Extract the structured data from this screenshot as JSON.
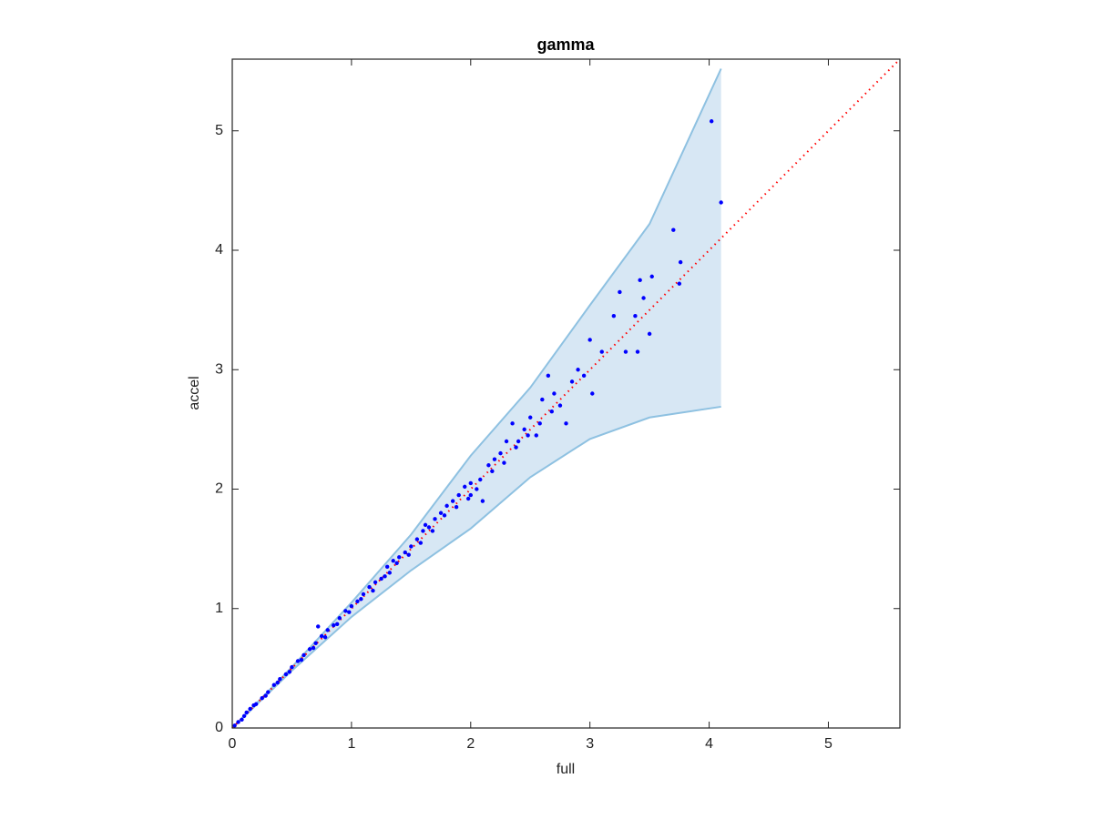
{
  "chart_data": {
    "type": "scatter",
    "title": "gamma",
    "x_label": "full",
    "y_label": "accel",
    "xlim": [
      0,
      5.6
    ],
    "ylim": [
      0,
      5.6
    ],
    "xticks": [
      0,
      1,
      2,
      3,
      4,
      5
    ],
    "yticks": [
      0,
      1,
      2,
      3,
      4,
      5
    ],
    "band": {
      "color": "#d7e7f4",
      "edge_color": "#8ec1e1",
      "x": [
        0,
        0.5,
        1,
        1.5,
        2,
        2.5,
        3,
        3.5,
        4.1
      ],
      "upper": [
        0,
        0.51,
        1.05,
        1.62,
        2.28,
        2.85,
        3.54,
        4.22,
        5.52
      ],
      "lower": [
        0,
        0.48,
        0.93,
        1.32,
        1.67,
        2.1,
        2.42,
        2.6,
        2.69
      ]
    },
    "reference": {
      "color": "#ff0000",
      "x": [
        0,
        5.6
      ],
      "y": [
        0,
        5.6
      ]
    },
    "points": {
      "color": "#0000ff",
      "x": [
        0.02,
        0.05,
        0.08,
        0.1,
        0.12,
        0.15,
        0.18,
        0.2,
        0.25,
        0.28,
        0.3,
        0.35,
        0.38,
        0.4,
        0.45,
        0.48,
        0.5,
        0.55,
        0.58,
        0.6,
        0.65,
        0.68,
        0.7,
        0.72,
        0.75,
        0.78,
        0.8,
        0.85,
        0.88,
        0.9,
        0.95,
        0.98,
        1.0,
        1.05,
        1.08,
        1.1,
        1.15,
        1.18,
        1.2,
        1.25,
        1.28,
        1.3,
        1.32,
        1.35,
        1.38,
        1.4,
        1.45,
        1.48,
        1.5,
        1.55,
        1.58,
        1.6,
        1.62,
        1.65,
        1.68,
        1.7,
        1.75,
        1.78,
        1.8,
        1.85,
        1.88,
        1.9,
        1.95,
        1.98,
        2.0,
        2.0,
        2.05,
        2.08,
        2.1,
        2.15,
        2.18,
        2.2,
        2.25,
        2.28,
        2.3,
        2.35,
        2.38,
        2.4,
        2.45,
        2.48,
        2.5,
        2.55,
        2.58,
        2.6,
        2.65,
        2.68,
        2.7,
        2.75,
        2.8,
        2.85,
        2.9,
        2.95,
        3.0,
        3.02,
        3.1,
        3.2,
        3.25,
        3.3,
        3.38,
        3.4,
        3.42,
        3.45,
        3.5,
        3.52,
        3.7,
        3.75,
        3.76,
        4.02,
        4.1
      ],
      "y": [
        0.02,
        0.05,
        0.07,
        0.1,
        0.13,
        0.16,
        0.19,
        0.2,
        0.25,
        0.27,
        0.3,
        0.36,
        0.38,
        0.41,
        0.45,
        0.47,
        0.51,
        0.56,
        0.57,
        0.61,
        0.66,
        0.67,
        0.71,
        0.85,
        0.77,
        0.76,
        0.82,
        0.86,
        0.87,
        0.92,
        0.98,
        0.97,
        1.02,
        1.06,
        1.08,
        1.12,
        1.18,
        1.15,
        1.22,
        1.25,
        1.27,
        1.35,
        1.3,
        1.4,
        1.38,
        1.43,
        1.47,
        1.45,
        1.52,
        1.58,
        1.55,
        1.65,
        1.7,
        1.68,
        1.65,
        1.75,
        1.8,
        1.78,
        1.86,
        1.9,
        1.85,
        1.95,
        2.02,
        1.92,
        2.05,
        1.95,
        2.0,
        2.08,
        1.9,
        2.2,
        2.15,
        2.25,
        2.3,
        2.22,
        2.4,
        2.55,
        2.35,
        2.4,
        2.5,
        2.45,
        2.6,
        2.45,
        2.55,
        2.75,
        2.95,
        2.65,
        2.8,
        2.7,
        2.55,
        2.9,
        3.0,
        2.95,
        3.25,
        2.8,
        3.15,
        3.45,
        3.65,
        3.15,
        3.45,
        3.15,
        3.75,
        3.6,
        3.3,
        3.78,
        4.17,
        3.72,
        3.9,
        5.08,
        4.4
      ]
    }
  }
}
